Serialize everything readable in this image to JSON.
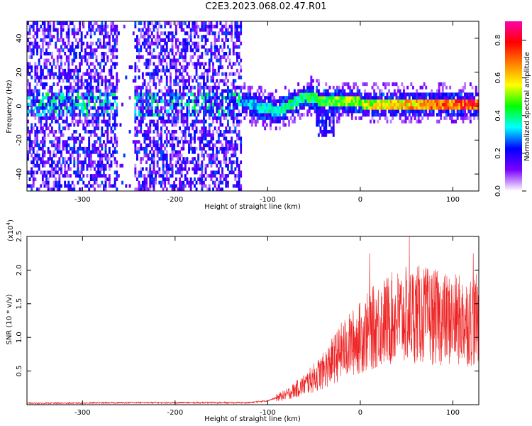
{
  "title": "C2E3.2023.068.02.47.R01",
  "chart_data": [
    {
      "type": "heatmap",
      "xlabel": "Height of straight line (km)",
      "ylabel": "Frequency (Hz)",
      "xlim": [
        -360,
        128
      ],
      "ylim": [
        -50,
        50
      ],
      "xticks": [
        -300,
        -200,
        -100,
        0,
        100
      ],
      "yticks": [
        -40,
        -20,
        0,
        20,
        40
      ],
      "colorbar": {
        "label": "Normalized spectral amplitude",
        "range": [
          0.0,
          0.9
        ],
        "ticks": [
          "0.0",
          "0.2",
          "0.4",
          "0.6",
          "0.8"
        ],
        "colors": [
          "#ffffff",
          "#7a00ff",
          "#0000ff",
          "#00ffff",
          "#00ff00",
          "#ffff00",
          "#ff8000",
          "#ff0000",
          "#ff00aa"
        ]
      },
      "regions": [
        {
          "x_range": [
            -360,
            -128
          ],
          "pattern": "broadband noise across full frequency range",
          "gap_x": [
            -262,
            -245
          ]
        },
        {
          "x_range": [
            -128,
            128
          ],
          "pattern": "narrow band centered near 0 Hz",
          "center_freq": [
            [
              -120,
              0
            ],
            [
              -90,
              -4
            ],
            [
              -60,
              5
            ],
            [
              -40,
              2
            ],
            [
              0,
              1
            ],
            [
              60,
              0
            ],
            [
              128,
              1
            ]
          ]
        }
      ]
    },
    {
      "type": "line",
      "xlabel": "Height of straight line (km)",
      "ylabel": "SNR (10 * v/v)",
      "yscale_label": "(x10",
      "yscale_exp": "4",
      "yscale_close": ")",
      "xlim": [
        -360,
        128
      ],
      "ylim": [
        0,
        2.5
      ],
      "xticks": [
        -300,
        -200,
        -100,
        0,
        100
      ],
      "yticks": [
        "0.5",
        "1.0",
        "1.5",
        "2.0",
        "2.5"
      ],
      "ytick_values": [
        0.5,
        1.0,
        1.5,
        2.0,
        2.5
      ],
      "color": "#ee2222",
      "trend": [
        {
          "x": -360,
          "y": 0.02
        },
        {
          "x": -250,
          "y": 0.03
        },
        {
          "x": -120,
          "y": 0.03
        },
        {
          "x": -100,
          "y": 0.06
        },
        {
          "x": -80,
          "y": 0.15
        },
        {
          "x": -60,
          "y": 0.3
        },
        {
          "x": -40,
          "y": 0.5
        },
        {
          "x": -20,
          "y": 0.8
        },
        {
          "x": 0,
          "y": 1.0
        },
        {
          "x": 20,
          "y": 1.2
        },
        {
          "x": 40,
          "y": 1.3
        },
        {
          "x": 60,
          "y": 1.35
        },
        {
          "x": 80,
          "y": 1.3
        },
        {
          "x": 100,
          "y": 1.25
        },
        {
          "x": 128,
          "y": 1.25
        }
      ],
      "peaks": [
        {
          "x": 10,
          "y": 2.25
        },
        {
          "x": 53,
          "y": 2.5
        },
        {
          "x": 122,
          "y": 2.25
        }
      ]
    }
  ]
}
